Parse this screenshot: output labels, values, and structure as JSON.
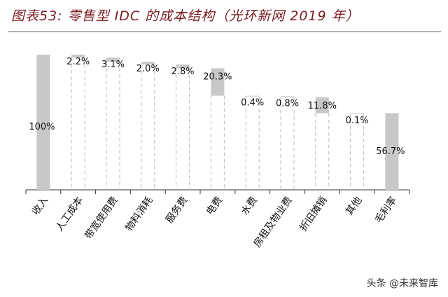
{
  "title": "图表53: 零售型 IDC 的成本结构（光环新网 2019 年）",
  "watermark": "头条 @未来智库",
  "chart_data": {
    "type": "waterfall",
    "title": "图表53: 零售型 IDC 的成本结构（光环新网 2019 年）",
    "categories": [
      "收入",
      "人工成本",
      "带宽使用费",
      "物料消耗",
      "服务费",
      "电费",
      "水费",
      "房租及物业费",
      "折旧摊销",
      "其他",
      "毛利率"
    ],
    "values": [
      100,
      2.2,
      3.1,
      2.0,
      2.8,
      20.3,
      0.4,
      0.8,
      11.8,
      0.1,
      56.7
    ],
    "labels": [
      "100%",
      "2.2%",
      "3.1%",
      "2.0%",
      "2.8%",
      "20.3%",
      "0.4%",
      "0.8%",
      "11.8%",
      "0.1%",
      "56.7%"
    ],
    "kinds": [
      "total",
      "decrease",
      "decrease",
      "decrease",
      "decrease",
      "decrease",
      "decrease",
      "decrease",
      "decrease",
      "decrease",
      "total"
    ],
    "ylim": [
      0,
      100
    ],
    "bar_color": "#c8c8c8",
    "grid": false
  }
}
